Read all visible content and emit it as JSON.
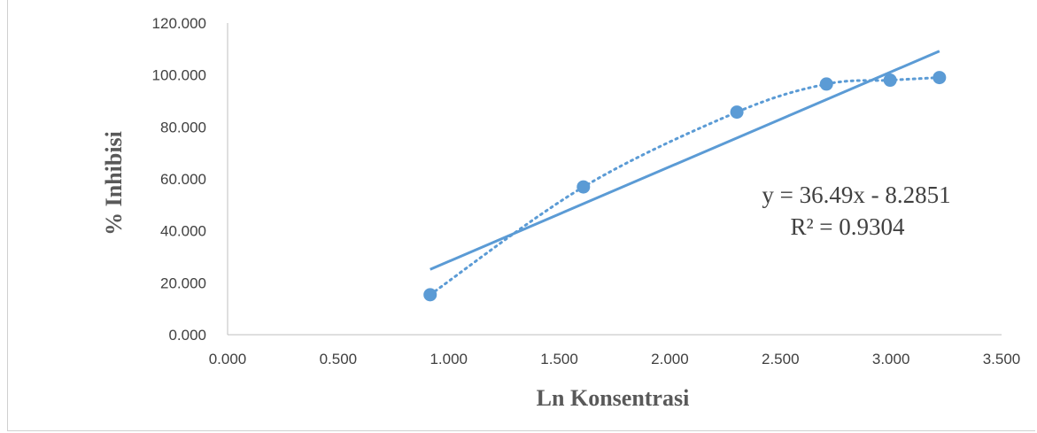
{
  "chart_data": {
    "type": "scatter",
    "xlabel": "Ln Konsentrasi",
    "ylabel": "% Inhibisi",
    "xlim": [
      0,
      3.5
    ],
    "ylim": [
      0,
      120
    ],
    "x_ticks": [
      "0.000",
      "0.500",
      "1.000",
      "1.500",
      "2.000",
      "2.500",
      "3.000",
      "3.500"
    ],
    "y_ticks": [
      "0.000",
      "20.000",
      "40.000",
      "60.000",
      "80.000",
      "100.000",
      "120.000"
    ],
    "x_tick_values": [
      0,
      0.5,
      1,
      1.5,
      2,
      2.5,
      3,
      3.5
    ],
    "y_tick_values": [
      0,
      20,
      40,
      60,
      80,
      100,
      120
    ],
    "series": [
      {
        "x": [
          0.916,
          1.609,
          2.303,
          2.708,
          2.996,
          3.219
        ],
        "y": [
          15.4,
          56.9,
          85.7,
          96.5,
          98.0,
          99.0
        ]
      }
    ],
    "trendline_linear": {
      "slope": 36.49,
      "intercept": -8.2851
    },
    "trendline_curve": "dotted smooth fit through the points",
    "equation_label": "y = 36.49x - 8.2851",
    "r2_label": "R² = 0.9304",
    "grid": false,
    "colors": {
      "marker": "#5B9BD5",
      "linear": "#5B9BD5",
      "curve": "#5B9BD5",
      "axis": "#bfbfbf"
    }
  }
}
